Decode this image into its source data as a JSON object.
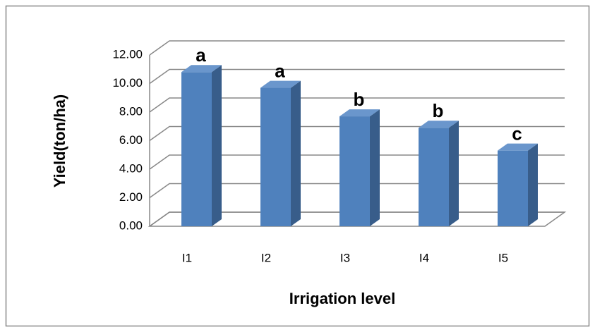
{
  "chart_data": {
    "type": "bar3d",
    "categories": [
      "I1",
      "I2",
      "I3",
      "I4",
      "I5"
    ],
    "values": [
      10.8,
      9.7,
      7.7,
      6.9,
      5.3
    ],
    "annotations": [
      "a",
      "a",
      "b",
      "b",
      "c"
    ],
    "color": "#4f81bd",
    "ylabel": "Yield(ton/ha)",
    "xlabel": "Irrigation level",
    "ylim": [
      0,
      12
    ],
    "yticks": [
      {
        "value": 0,
        "label": "0.00"
      },
      {
        "value": 2,
        "label": "2.00"
      },
      {
        "value": 4,
        "label": "4.00"
      },
      {
        "value": 6,
        "label": "6.00"
      },
      {
        "value": 8,
        "label": "8.00"
      },
      {
        "value": 10,
        "label": "10.00"
      },
      {
        "value": 12,
        "label": "12.00"
      }
    ],
    "grid": true
  }
}
